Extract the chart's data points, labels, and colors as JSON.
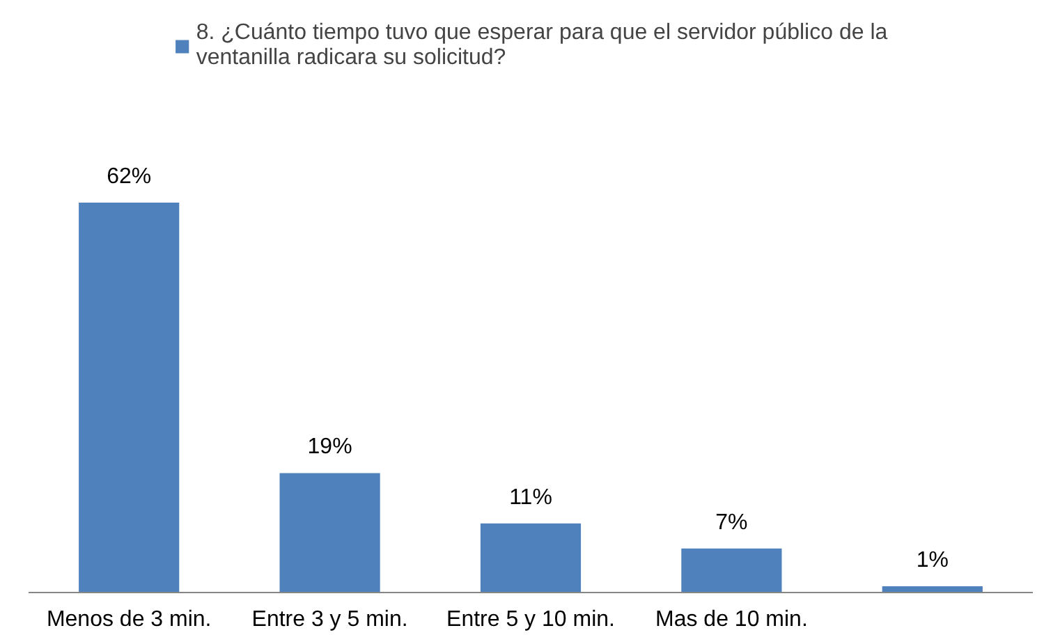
{
  "chart_data": {
    "type": "bar",
    "categories": [
      "Menos de 3 min.",
      "Entre 3 y 5 min.",
      "Entre 5 y 10 min.",
      "Mas de 10 min.",
      null
    ],
    "series": [
      {
        "name": "8. ¿Cuánto tiempo tuvo que esperar para que el servidor público de la ventanilla radicara su solicitud?",
        "color": "#4f81bd",
        "values": [
          62,
          19,
          11,
          7,
          1
        ],
        "value_labels": [
          "62%",
          "19%",
          "11%",
          "7%",
          "1%"
        ]
      }
    ],
    "legend": "top"
  }
}
